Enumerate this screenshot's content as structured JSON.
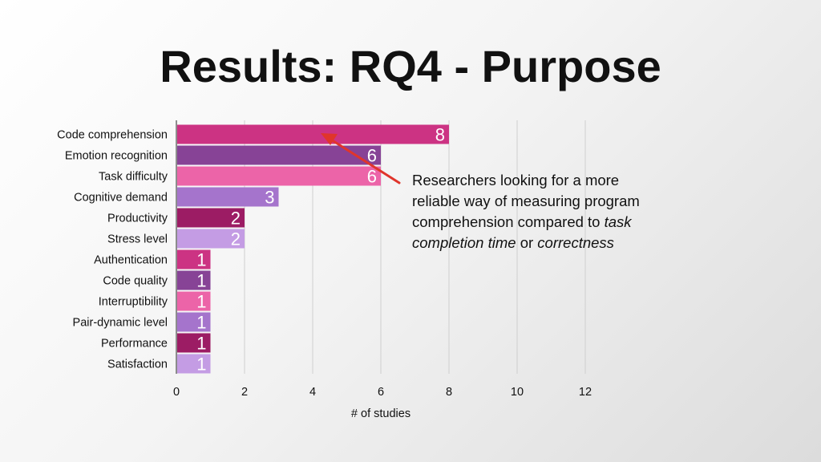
{
  "slide": {
    "title": "Results: RQ4 - Purpose"
  },
  "callout": {
    "line1": "Researchers looking for a more",
    "line2": "reliable way of measuring program",
    "line3_prefix": "comprehension compared to ",
    "line3_italic": "task",
    "line4_italic_a": "completion time",
    "line4_mid": " or ",
    "line4_italic_b": "correctness",
    "arrow_color": "#e0352b"
  },
  "chart_data": {
    "type": "bar",
    "orientation": "horizontal",
    "categories": [
      "Code comprehension",
      "Emotion recognition",
      "Task difficulty",
      "Cognitive demand",
      "Productivity",
      "Stress level",
      "Authentication",
      "Code quality",
      "Interruptibility",
      "Pair-dynamic level",
      "Performance",
      "Satisfaction"
    ],
    "values": [
      8,
      6,
      6,
      3,
      2,
      2,
      1,
      1,
      1,
      1,
      1,
      1
    ],
    "value_labels": [
      "8",
      "6",
      "6",
      "3",
      "2",
      "2",
      "1",
      "1",
      "1",
      "1",
      "1",
      "1"
    ],
    "colors": [
      "#cc3383",
      "#874396",
      "#ec64a8",
      "#a574cc",
      "#9c1c64",
      "#c49ce4",
      "#cc3383",
      "#874396",
      "#ec64a8",
      "#a574cc",
      "#9c1c64",
      "#c49ce4"
    ],
    "xlim": [
      0,
      12
    ],
    "xticks": [
      0,
      2,
      4,
      6,
      8,
      10,
      12
    ],
    "xtick_labels": [
      "0",
      "2",
      "4",
      "6",
      "8",
      "10",
      "12"
    ],
    "xlabel": "# of studies",
    "ylabel": "",
    "grid": true,
    "legend": false
  }
}
